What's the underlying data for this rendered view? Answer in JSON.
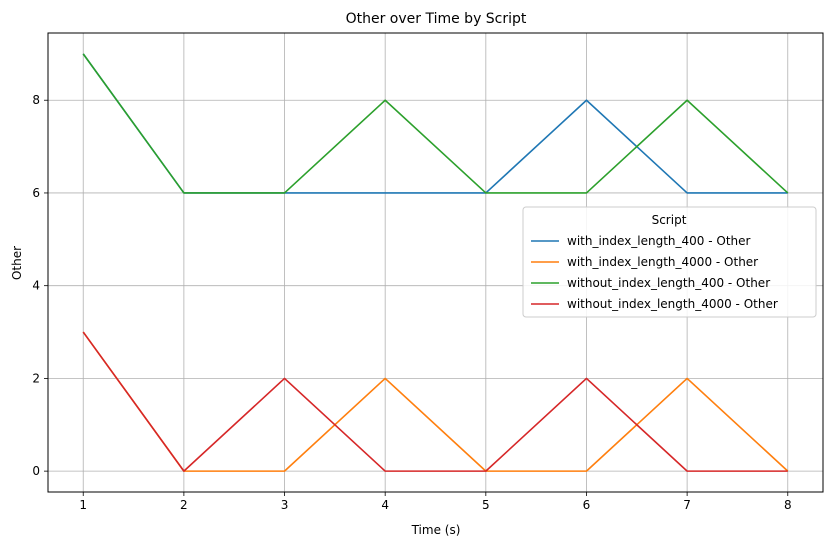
{
  "chart_data": {
    "type": "line",
    "title": "Other over Time by Script",
    "xlabel": "Time (s)",
    "ylabel": "Other",
    "x": [
      1,
      2,
      3,
      4,
      5,
      6,
      7,
      8
    ],
    "xticks": [
      "1",
      "2",
      "3",
      "4",
      "5",
      "6",
      "7",
      "8"
    ],
    "yticks": [
      "0",
      "2",
      "4",
      "6",
      "8"
    ],
    "xlim": [
      0.65,
      8.35
    ],
    "ylim": [
      -0.45,
      9.45
    ],
    "grid": true,
    "legend": {
      "title": "Script",
      "placement": "center-right"
    },
    "series": [
      {
        "name": "with_index_length_400 - Other",
        "color": "#1f77b4",
        "values": [
          9,
          6,
          6,
          6,
          6,
          8,
          6,
          6
        ]
      },
      {
        "name": "with_index_length_4000 - Other",
        "color": "#ff7f0e",
        "values": [
          3,
          0,
          0,
          2,
          0,
          0,
          2,
          0
        ]
      },
      {
        "name": "without_index_length_400 - Other",
        "color": "#2ca02c",
        "values": [
          9,
          6,
          6,
          8,
          6,
          6,
          8,
          6
        ]
      },
      {
        "name": "without_index_length_4000 - Other",
        "color": "#d62728",
        "values": [
          3,
          0,
          2,
          0,
          0,
          2,
          0,
          0
        ]
      }
    ]
  }
}
